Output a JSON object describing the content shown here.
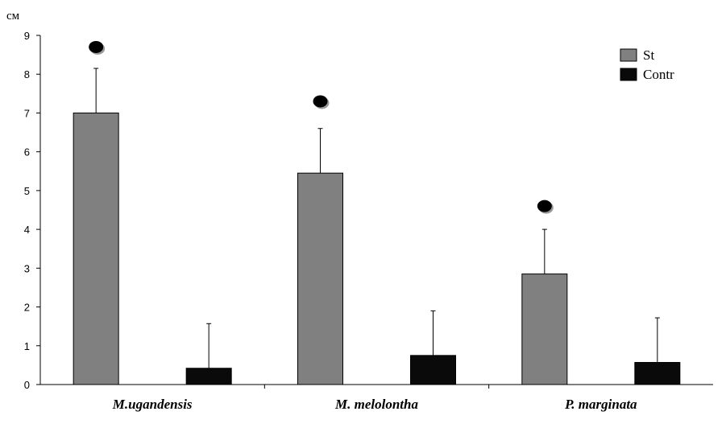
{
  "chart_data": {
    "type": "bar",
    "title": "",
    "xlabel": "",
    "ylabel": "см",
    "ylim": [
      0,
      9
    ],
    "yticks": [
      0,
      1,
      2,
      3,
      4,
      5,
      6,
      7,
      8,
      9
    ],
    "grid": false,
    "legend_position": "top-right",
    "categories": [
      "M.ugandensis",
      "M. melolontha",
      "P. marginata"
    ],
    "series": [
      {
        "name": "St",
        "color": "#808080",
        "values": [
          7.0,
          5.45,
          2.85
        ],
        "errors": [
          1.15,
          1.15,
          1.15
        ]
      },
      {
        "name": "Contr",
        "color": "#0a0a0a",
        "values": [
          0.42,
          0.75,
          0.57
        ],
        "errors": [
          1.15,
          1.15,
          1.15
        ]
      }
    ],
    "annotations": [
      {
        "type": "significance-dot",
        "category": "M.ugandensis",
        "series": "St",
        "value": 8.7
      },
      {
        "type": "significance-dot",
        "category": "M. melolontha",
        "series": "St",
        "value": 7.3
      },
      {
        "type": "significance-dot",
        "category": "P. marginata",
        "series": "St",
        "value": 4.6
      }
    ]
  }
}
